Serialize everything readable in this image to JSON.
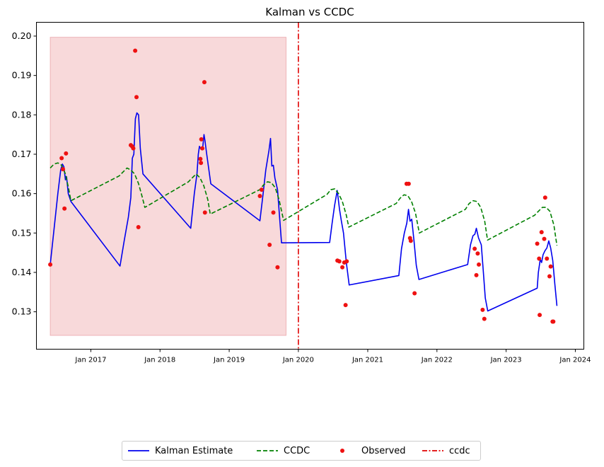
{
  "chart_data": {
    "type": "line",
    "title": "Kalman vs CCDC",
    "xlabel": "",
    "ylabel": "",
    "x_axis": "date",
    "xlim": [
      "2016-03-20",
      "2024-02-15"
    ],
    "ylim": [
      0.1205,
      0.2035
    ],
    "x_ticks": [
      {
        "date": "2017-01-01",
        "label": "Jan 2017"
      },
      {
        "date": "2018-01-01",
        "label": "Jan 2018"
      },
      {
        "date": "2019-01-01",
        "label": "Jan 2019"
      },
      {
        "date": "2020-01-01",
        "label": "Jan 2020"
      },
      {
        "date": "2021-01-01",
        "label": "Jan 2021"
      },
      {
        "date": "2022-01-01",
        "label": "Jan 2022"
      },
      {
        "date": "2023-01-01",
        "label": "Jan 2023"
      },
      {
        "date": "2024-01-01",
        "label": "Jan 2024"
      }
    ],
    "y_ticks": [
      "0.13",
      "0.14",
      "0.15",
      "0.16",
      "0.17",
      "0.18",
      "0.19",
      "0.20"
    ],
    "y_tick_values": [
      0.13,
      0.14,
      0.15,
      0.16,
      0.17,
      0.18,
      0.19,
      0.2
    ],
    "grid": false,
    "legend_position": "below",
    "shaded_region": {
      "x0": "2016-06-01",
      "x1": "2019-10-28",
      "y0": 0.124,
      "y1": 0.1997,
      "color": "#f2b3b6"
    },
    "vline": {
      "name": "ccdc",
      "date": "2020-01-01",
      "color": "#e00000",
      "style": "dashdot"
    },
    "series": [
      {
        "name": "Kalman Estimate",
        "kind": "line",
        "color": "#0000ee",
        "style": "solid",
        "points": [
          [
            "2016-06-01",
            0.142
          ],
          [
            "2016-06-21",
            0.151
          ],
          [
            "2016-07-11",
            0.16
          ],
          [
            "2016-07-26",
            0.166
          ],
          [
            "2016-08-04",
            0.1675
          ],
          [
            "2016-08-12",
            0.1668
          ],
          [
            "2016-08-20",
            0.1635
          ],
          [
            "2016-08-26",
            0.1643
          ],
          [
            "2016-09-04",
            0.16
          ],
          [
            "2016-09-18",
            0.158
          ],
          [
            "2017-06-04",
            0.1416
          ],
          [
            "2017-06-26",
            0.148
          ],
          [
            "2017-07-18",
            0.154
          ],
          [
            "2017-07-31",
            0.159
          ],
          [
            "2017-08-08",
            0.169
          ],
          [
            "2017-08-16",
            0.17
          ],
          [
            "2017-08-24",
            0.179
          ],
          [
            "2017-09-01",
            0.1805
          ],
          [
            "2017-09-10",
            0.18
          ],
          [
            "2017-09-19",
            0.1715
          ],
          [
            "2017-10-03",
            0.165
          ],
          [
            "2018-06-12",
            0.1512
          ],
          [
            "2018-07-01",
            0.16
          ],
          [
            "2018-07-15",
            0.165
          ],
          [
            "2018-07-22",
            0.17
          ],
          [
            "2018-07-28",
            0.172
          ],
          [
            "2018-08-05",
            0.1713
          ],
          [
            "2018-08-15",
            0.172
          ],
          [
            "2018-08-21",
            0.175
          ],
          [
            "2018-08-26",
            0.1735
          ],
          [
            "2018-09-03",
            0.1705
          ],
          [
            "2018-09-26",
            0.1625
          ],
          [
            "2019-06-12",
            0.1531
          ],
          [
            "2019-06-29",
            0.16
          ],
          [
            "2019-07-13",
            0.166
          ],
          [
            "2019-07-30",
            0.171
          ],
          [
            "2019-08-07",
            0.174
          ],
          [
            "2019-08-14",
            0.167
          ],
          [
            "2019-08-22",
            0.1672
          ],
          [
            "2019-08-30",
            0.164
          ],
          [
            "2019-09-13",
            0.161
          ],
          [
            "2019-10-04",
            0.1475
          ],
          [
            "2020-06-14",
            0.1476
          ],
          [
            "2020-06-27",
            0.1525
          ],
          [
            "2020-07-10",
            0.157
          ],
          [
            "2020-07-24",
            0.1608
          ],
          [
            "2020-08-05",
            0.156
          ],
          [
            "2020-08-15",
            0.153
          ],
          [
            "2020-08-26",
            0.15
          ],
          [
            "2020-09-10",
            0.1425
          ],
          [
            "2020-09-25",
            0.1368
          ],
          [
            "2021-06-14",
            0.1392
          ],
          [
            "2021-06-28",
            0.146
          ],
          [
            "2021-07-13",
            0.15
          ],
          [
            "2021-07-26",
            0.1525
          ],
          [
            "2021-08-04",
            0.156
          ],
          [
            "2021-08-12",
            0.153
          ],
          [
            "2021-08-21",
            0.1535
          ],
          [
            "2021-09-02",
            0.148
          ],
          [
            "2021-09-14",
            0.1418
          ],
          [
            "2021-09-28",
            0.1382
          ],
          [
            "2022-06-12",
            0.142
          ],
          [
            "2022-06-27",
            0.147
          ],
          [
            "2022-07-10",
            0.1493
          ],
          [
            "2022-07-20",
            0.1497
          ],
          [
            "2022-07-28",
            0.1512
          ],
          [
            "2022-08-08",
            0.1488
          ],
          [
            "2022-08-23",
            0.147
          ],
          [
            "2022-09-03",
            0.14
          ],
          [
            "2022-09-13",
            0.1335
          ],
          [
            "2022-09-26",
            0.1302
          ],
          [
            "2023-06-14",
            0.136
          ],
          [
            "2023-06-20",
            0.14
          ],
          [
            "2023-06-30",
            0.1433
          ],
          [
            "2023-07-07",
            0.1425
          ],
          [
            "2023-07-15",
            0.1445
          ],
          [
            "2023-07-25",
            0.1455
          ],
          [
            "2023-08-04",
            0.1462
          ],
          [
            "2023-08-14",
            0.148
          ],
          [
            "2023-08-24",
            0.1462
          ],
          [
            "2023-09-04",
            0.143
          ],
          [
            "2023-09-15",
            0.137
          ],
          [
            "2023-09-26",
            0.1315
          ]
        ]
      },
      {
        "name": "CCDC",
        "kind": "line",
        "color": "#008000",
        "style": "dashed",
        "points": [
          [
            "2016-06-01",
            0.1665
          ],
          [
            "2016-06-21",
            0.1675
          ],
          [
            "2016-07-11",
            0.1678
          ],
          [
            "2016-07-31",
            0.1672
          ],
          [
            "2016-08-20",
            0.165
          ],
          [
            "2016-09-05",
            0.1615
          ],
          [
            "2016-09-18",
            0.1582
          ],
          [
            "2017-05-31",
            0.1645
          ],
          [
            "2017-06-20",
            0.1655
          ],
          [
            "2017-07-11",
            0.1665
          ],
          [
            "2017-07-31",
            0.166
          ],
          [
            "2017-08-20",
            0.165
          ],
          [
            "2017-09-10",
            0.1625
          ],
          [
            "2017-09-30",
            0.159
          ],
          [
            "2017-10-13",
            0.1565
          ],
          [
            "2018-05-31",
            0.163
          ],
          [
            "2018-06-20",
            0.164
          ],
          [
            "2018-07-11",
            0.165
          ],
          [
            "2018-07-31",
            0.164
          ],
          [
            "2018-08-20",
            0.162
          ],
          [
            "2018-09-10",
            0.1585
          ],
          [
            "2018-09-23",
            0.1548
          ],
          [
            "2019-06-11",
            0.161
          ],
          [
            "2019-07-01",
            0.1622
          ],
          [
            "2019-07-22",
            0.163
          ],
          [
            "2019-08-11",
            0.1628
          ],
          [
            "2019-09-01",
            0.1615
          ],
          [
            "2019-09-21",
            0.1585
          ],
          [
            "2019-10-15",
            0.1532
          ],
          [
            "2020-05-31",
            0.1598
          ],
          [
            "2020-06-20",
            0.161
          ],
          [
            "2020-07-11",
            0.1612
          ],
          [
            "2020-07-31",
            0.16
          ],
          [
            "2020-08-20",
            0.158
          ],
          [
            "2020-09-10",
            0.1545
          ],
          [
            "2020-09-23",
            0.1515
          ],
          [
            "2021-05-31",
            0.1575
          ],
          [
            "2021-06-20",
            0.1588
          ],
          [
            "2021-07-11",
            0.1597
          ],
          [
            "2021-07-31",
            0.1595
          ],
          [
            "2021-08-20",
            0.158
          ],
          [
            "2021-09-10",
            0.155
          ],
          [
            "2021-09-30",
            0.15
          ],
          [
            "2022-05-31",
            0.156
          ],
          [
            "2022-06-20",
            0.1575
          ],
          [
            "2022-07-11",
            0.1582
          ],
          [
            "2022-07-31",
            0.158
          ],
          [
            "2022-08-20",
            0.1565
          ],
          [
            "2022-09-10",
            0.153
          ],
          [
            "2022-09-25",
            0.1482
          ],
          [
            "2023-05-31",
            0.1545
          ],
          [
            "2023-06-20",
            0.1555
          ],
          [
            "2023-07-11",
            0.1565
          ],
          [
            "2023-07-31",
            0.1565
          ],
          [
            "2023-08-20",
            0.1555
          ],
          [
            "2023-09-10",
            0.152
          ],
          [
            "2023-09-26",
            0.1468
          ]
        ]
      },
      {
        "name": "Observed",
        "kind": "scatter",
        "color": "#ee1111",
        "points": [
          [
            "2016-06-01",
            0.142
          ],
          [
            "2016-07-31",
            0.169
          ],
          [
            "2016-08-07",
            0.1662
          ],
          [
            "2016-08-15",
            0.1562
          ],
          [
            "2016-08-23",
            0.1702
          ],
          [
            "2017-07-31",
            0.1723
          ],
          [
            "2017-08-07",
            0.172
          ],
          [
            "2017-08-13",
            0.1715
          ],
          [
            "2017-08-23",
            0.1963
          ],
          [
            "2017-08-30",
            0.1845
          ],
          [
            "2017-09-09",
            0.1515
          ],
          [
            "2018-08-02",
            0.1688
          ],
          [
            "2018-08-05",
            0.1678
          ],
          [
            "2018-08-07",
            0.1738
          ],
          [
            "2018-08-12",
            0.1715
          ],
          [
            "2018-08-23",
            0.1883
          ],
          [
            "2018-08-26",
            0.1552
          ],
          [
            "2019-06-12",
            0.1594
          ],
          [
            "2019-06-21",
            0.161
          ],
          [
            "2019-08-02",
            0.147
          ],
          [
            "2019-08-22",
            0.1552
          ],
          [
            "2019-09-13",
            0.1413
          ],
          [
            "2020-07-25",
            0.143
          ],
          [
            "2020-08-04",
            0.1428
          ],
          [
            "2020-08-20",
            0.1413
          ],
          [
            "2020-08-30",
            0.1425
          ],
          [
            "2020-09-06",
            0.1317
          ],
          [
            "2020-09-12",
            0.1428
          ],
          [
            "2021-07-25",
            0.1625
          ],
          [
            "2021-08-05",
            0.1625
          ],
          [
            "2021-08-12",
            0.1487
          ],
          [
            "2021-08-16",
            0.148
          ],
          [
            "2021-09-05",
            0.1347
          ],
          [
            "2022-07-19",
            0.146
          ],
          [
            "2022-07-28",
            0.1393
          ],
          [
            "2022-08-04",
            0.1448
          ],
          [
            "2022-08-10",
            0.142
          ],
          [
            "2022-08-30",
            0.1305
          ],
          [
            "2022-09-08",
            0.1282
          ],
          [
            "2023-06-14",
            0.1473
          ],
          [
            "2023-06-24",
            0.1435
          ],
          [
            "2023-06-27",
            0.1292
          ],
          [
            "2023-07-07",
            0.1502
          ],
          [
            "2023-07-21",
            0.1485
          ],
          [
            "2023-07-26",
            0.159
          ],
          [
            "2023-08-04",
            0.1435
          ],
          [
            "2023-08-18",
            0.139
          ],
          [
            "2023-08-24",
            0.1415
          ],
          [
            "2023-09-03",
            0.1275
          ],
          [
            "2023-09-07",
            0.1275
          ]
        ]
      }
    ]
  },
  "legend": {
    "items": [
      {
        "label": "Kalman Estimate"
      },
      {
        "label": "CCDC"
      },
      {
        "label": "Observed"
      },
      {
        "label": "ccdc"
      }
    ]
  }
}
